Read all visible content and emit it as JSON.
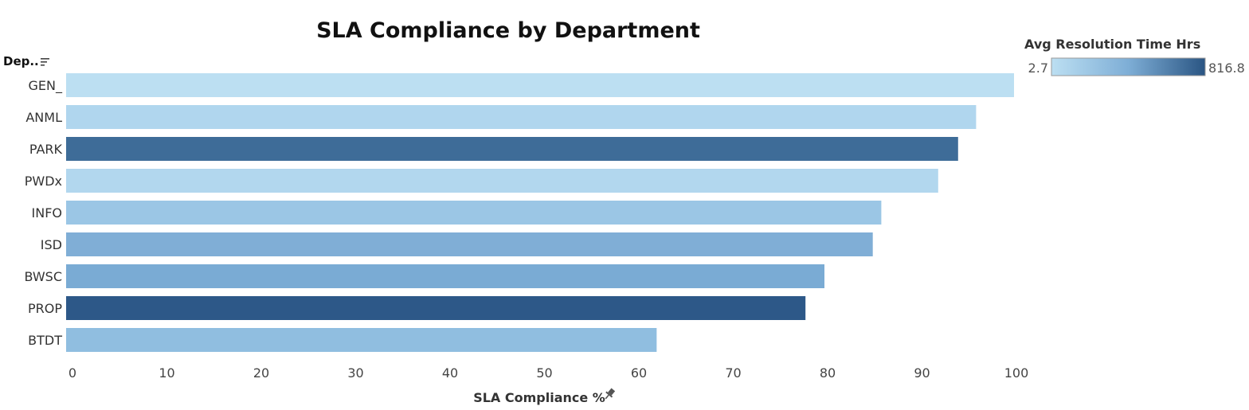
{
  "chart_data": {
    "type": "bar",
    "orientation": "horizontal",
    "title": "SLA Compliance by Department",
    "xlabel": "SLA Compliance %",
    "ylabel": "Dep..",
    "categories": [
      "GEN_",
      "ANML",
      "PARK",
      "PWDx",
      "INFO",
      "ISD",
      "BWSC",
      "PROP",
      "BTDT"
    ],
    "values": [
      100.0,
      96.0,
      94.1,
      92.0,
      86.0,
      85.1,
      80.0,
      78.0,
      62.3
    ],
    "xlim": [
      0,
      100
    ],
    "xticks": [
      "0",
      "10",
      "20",
      "30",
      "40",
      "50",
      "60",
      "70",
      "80",
      "90",
      "100"
    ],
    "grid": false,
    "legend_position": "top-right",
    "color_legend": {
      "title": "Avg Resolution Time Hrs",
      "min_label": "2.7",
      "max_label": "816.8",
      "min": 2.7,
      "max": 816.8,
      "color_low": "#bcdff2",
      "color_high": "#2a5583"
    },
    "bar_colors": [
      "#bcdff2",
      "#b0d6ee",
      "#3e6c98",
      "#b2d7ee",
      "#9bc6e5",
      "#80aed6",
      "#7aabd4",
      "#2d5888",
      "#90bee0"
    ],
    "icons": {
      "sort_icon": "sort-descending-icon",
      "pin_icon": "pin-icon"
    }
  }
}
